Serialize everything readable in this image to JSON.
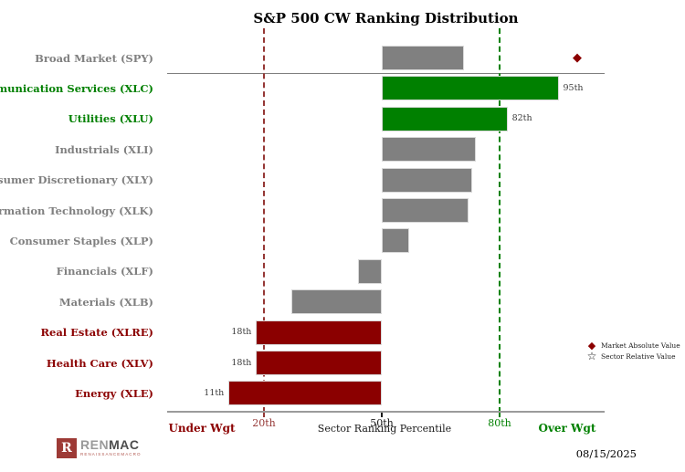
{
  "title": "S&P 500 CW Ranking Distribution",
  "chart_data": {
    "type": "bar",
    "orientation": "horizontal",
    "baseline_percentile": 50,
    "xlabel": "Sector Ranking Percentile",
    "x_ticks": [
      {
        "label": "20th",
        "value": 20,
        "color": "#953735"
      },
      {
        "label": "50th",
        "value": 50,
        "color": "#1a1a1a"
      },
      {
        "label": "80th",
        "value": 80,
        "color": "#008000"
      }
    ],
    "reference_lines": [
      {
        "value": 20,
        "color": "#953735"
      },
      {
        "value": 80,
        "color": "#008000"
      }
    ],
    "zone_labels": {
      "under": "Under Wgt",
      "over": "Over Wgt"
    },
    "rows": [
      {
        "label": "Broad Market (SPY)",
        "value": 71,
        "color": "gray",
        "value_label": "",
        "marker": {
          "shape": "diamond",
          "value": 100,
          "color": "#8B0000"
        }
      },
      {
        "label": "Communication Services (XLC)",
        "value": 95,
        "color": "green",
        "value_label": "95th"
      },
      {
        "label": "Utilities (XLU)",
        "value": 82,
        "color": "green",
        "value_label": "82th"
      },
      {
        "label": "Industrials (XLI)",
        "value": 74,
        "color": "gray",
        "value_label": ""
      },
      {
        "label": "Consumer Discretionary (XLY)",
        "value": 73,
        "color": "gray",
        "value_label": ""
      },
      {
        "label": "Information Technology (XLK)",
        "value": 72,
        "color": "gray",
        "value_label": ""
      },
      {
        "label": "Consumer Staples (XLP)",
        "value": 57,
        "color": "gray",
        "value_label": ""
      },
      {
        "label": "Financials (XLF)",
        "value": 44,
        "color": "gray",
        "value_label": ""
      },
      {
        "label": "Materials (XLB)",
        "value": 27,
        "color": "gray",
        "value_label": ""
      },
      {
        "label": "Real Estate (XLRE)",
        "value": 18,
        "color": "red",
        "value_label": "18th"
      },
      {
        "label": "Health Care (XLV)",
        "value": 18,
        "color": "red",
        "value_label": "18th"
      },
      {
        "label": "Energy (XLE)",
        "value": 11,
        "color": "red",
        "value_label": "11th"
      }
    ]
  },
  "colors": {
    "green": "#008000",
    "gray": "#808080",
    "red": "#8B0000",
    "bar_border": "#d9d9d9"
  },
  "legend": {
    "items": [
      {
        "icon": "diamond-icon",
        "glyph": "◆",
        "label": "Market Absolute Value"
      },
      {
        "icon": "star-icon",
        "glyph": "☆",
        "label": "Sector Relative Value"
      }
    ]
  },
  "footer": {
    "date": "08/15/2025",
    "logo": {
      "mark": "R",
      "name_part1": "REN",
      "name_part2": "MAC",
      "subtitle": "RENAISSANCEMACRO"
    }
  }
}
